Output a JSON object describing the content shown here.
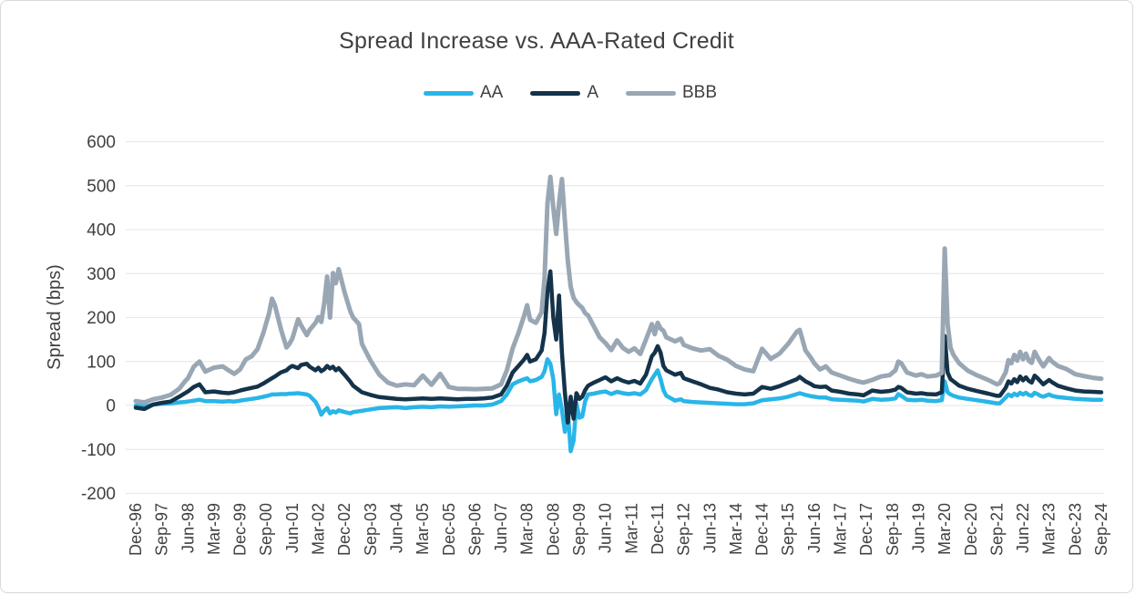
{
  "window": {
    "background": "#FFFFFF",
    "border_color": "#D8D8D8"
  },
  "chart": {
    "title": "Spread Increase vs. AAA-Rated Credit",
    "text_color": "#404040",
    "gridline_color": "#E9E9E9",
    "y_axis_label": "Spread (bps)"
  },
  "chart_data": {
    "type": "line",
    "title": "Spread Increase vs. AAA-Rated Credit",
    "xlabel": "",
    "ylabel": "Spread (bps)",
    "ylim": [
      -200,
      600
    ],
    "ytick_step": 100,
    "y_tick_labels": [
      "600",
      "500",
      "400",
      "300",
      "200",
      "100",
      "0",
      "-100",
      "-200"
    ],
    "grid": "horizontal",
    "legend_position": "top",
    "x_unit": "months since Dec-1996 (monthly spread vs AAA, bps)",
    "x_tick_labels": [
      "Dec-96",
      "Sep-97",
      "Jun-98",
      "Mar-99",
      "Dec-99",
      "Sep-00",
      "Jun-01",
      "Mar-02",
      "Dec-02",
      "Sep-03",
      "Jun-04",
      "Mar-05",
      "Dec-05",
      "Sep-06",
      "Jun-07",
      "Mar-08",
      "Dec-08",
      "Sep-09",
      "Jun-10",
      "Mar-11",
      "Dec-11",
      "Sep-12",
      "Jun-13",
      "Mar-14",
      "Dec-14",
      "Sep-15",
      "Jun-16",
      "Mar-17",
      "Dec-17",
      "Sep-18",
      "Jun-19",
      "Mar-20",
      "Dec-20",
      "Sep-21",
      "Jun-22",
      "Mar-23",
      "Dec-23",
      "Sep-24"
    ],
    "x_tick_months": [
      0,
      9,
      18,
      27,
      36,
      45,
      54,
      63,
      72,
      81,
      90,
      99,
      108,
      117,
      126,
      135,
      144,
      153,
      162,
      171,
      180,
      189,
      198,
      207,
      216,
      225,
      234,
      243,
      252,
      261,
      270,
      279,
      288,
      297,
      306,
      315,
      324,
      333
    ],
    "series": [
      {
        "name": "AA",
        "color": "#29B5E8",
        "stroke_width": 4.5
      },
      {
        "name": "A",
        "color": "#14334A",
        "stroke_width": 4.5
      },
      {
        "name": "BBB",
        "color": "#99A7B4",
        "stroke_width": 5
      }
    ],
    "columns": [
      "month_index",
      "AA",
      "A",
      "BBB"
    ],
    "rows": [
      [
        0,
        0,
        -5,
        10
      ],
      [
        3,
        -3,
        -8,
        7
      ],
      [
        6,
        2,
        2,
        14
      ],
      [
        9,
        4,
        6,
        18
      ],
      [
        12,
        5,
        9,
        24
      ],
      [
        15,
        7,
        20,
        38
      ],
      [
        17,
        8,
        28,
        55
      ],
      [
        18,
        9,
        32,
        62
      ],
      [
        20,
        11,
        42,
        88
      ],
      [
        22,
        13,
        48,
        100
      ],
      [
        24,
        10,
        30,
        77
      ],
      [
        27,
        10,
        32,
        86
      ],
      [
        30,
        9,
        29,
        89
      ],
      [
        32,
        10,
        28,
        80
      ],
      [
        34,
        9,
        30,
        72
      ],
      [
        36,
        11,
        34,
        82
      ],
      [
        38,
        13,
        37,
        105
      ],
      [
        40,
        15,
        40,
        112
      ],
      [
        42,
        17,
        43,
        128
      ],
      [
        44,
        20,
        50,
        165
      ],
      [
        46,
        23,
        58,
        210
      ],
      [
        47,
        25,
        62,
        243
      ],
      [
        48,
        25,
        66,
        228
      ],
      [
        50,
        26,
        75,
        175
      ],
      [
        52,
        26,
        80,
        132
      ],
      [
        53,
        27,
        86,
        140
      ],
      [
        54,
        27,
        90,
        152
      ],
      [
        56,
        28,
        85,
        196
      ],
      [
        57,
        27,
        92,
        183
      ],
      [
        59,
        25,
        95,
        160
      ],
      [
        60,
        22,
        88,
        172
      ],
      [
        62,
        8,
        80,
        188
      ],
      [
        63,
        -4,
        86,
        201
      ],
      [
        64,
        -21,
        78,
        190
      ],
      [
        65,
        -12,
        82,
        232
      ],
      [
        66,
        -6,
        90,
        293
      ],
      [
        67,
        -18,
        84,
        200
      ],
      [
        68,
        -13,
        88,
        301
      ],
      [
        69,
        -16,
        80,
        278
      ],
      [
        70,
        -11,
        85,
        310
      ],
      [
        72,
        -15,
        70,
        258
      ],
      [
        74,
        -18,
        54,
        214
      ],
      [
        75,
        -15,
        45,
        200
      ],
      [
        77,
        -13,
        35,
        185
      ],
      [
        78,
        -12,
        30,
        140
      ],
      [
        81,
        -9,
        24,
        102
      ],
      [
        84,
        -6,
        19,
        70
      ],
      [
        87,
        -5,
        17,
        52
      ],
      [
        90,
        -4,
        15,
        45
      ],
      [
        93,
        -6,
        14,
        48
      ],
      [
        96,
        -4,
        15,
        46
      ],
      [
        99,
        -3,
        16,
        68
      ],
      [
        102,
        -4,
        15,
        47
      ],
      [
        105,
        -2,
        16,
        72
      ],
      [
        108,
        -3,
        15,
        42
      ],
      [
        111,
        -2,
        14,
        38
      ],
      [
        114,
        -1,
        15,
        38
      ],
      [
        117,
        0,
        15,
        37
      ],
      [
        120,
        0,
        16,
        38
      ],
      [
        123,
        2,
        18,
        39
      ],
      [
        126,
        10,
        25,
        48
      ],
      [
        128,
        25,
        45,
        80
      ],
      [
        130,
        48,
        75,
        130
      ],
      [
        132,
        55,
        90,
        165
      ],
      [
        134,
        60,
        105,
        205
      ],
      [
        135,
        62,
        115,
        228
      ],
      [
        136,
        55,
        100,
        195
      ],
      [
        138,
        58,
        105,
        188
      ],
      [
        140,
        65,
        125,
        212
      ],
      [
        141,
        78,
        165,
        290
      ],
      [
        142,
        105,
        260,
        460
      ],
      [
        143,
        95,
        305,
        520
      ],
      [
        144,
        60,
        200,
        450
      ],
      [
        145,
        -20,
        150,
        390
      ],
      [
        146,
        25,
        250,
        460
      ],
      [
        147,
        -10,
        120,
        515
      ],
      [
        148,
        -60,
        30,
        420
      ],
      [
        149,
        -10,
        -39,
        330
      ],
      [
        150,
        -104,
        20,
        270
      ],
      [
        151,
        -80,
        -30,
        245
      ],
      [
        152,
        5,
        28,
        235
      ],
      [
        153,
        -28,
        15,
        228
      ],
      [
        154,
        -25,
        20,
        222
      ],
      [
        155,
        10,
        35,
        210
      ],
      [
        156,
        25,
        45,
        205
      ],
      [
        158,
        27,
        52,
        180
      ],
      [
        160,
        30,
        58,
        155
      ],
      [
        162,
        32,
        64,
        142
      ],
      [
        164,
        26,
        55,
        126
      ],
      [
        166,
        31,
        62,
        148
      ],
      [
        168,
        28,
        56,
        131
      ],
      [
        170,
        26,
        52,
        122
      ],
      [
        172,
        28,
        56,
        130
      ],
      [
        174,
        25,
        50,
        117
      ],
      [
        176,
        35,
        70,
        150
      ],
      [
        178,
        60,
        112,
        185
      ],
      [
        179,
        70,
        120,
        162
      ],
      [
        180,
        80,
        135,
        188
      ],
      [
        181,
        60,
        120,
        175
      ],
      [
        182,
        35,
        90,
        170
      ],
      [
        183,
        22,
        80,
        155
      ],
      [
        186,
        11,
        70,
        146
      ],
      [
        188,
        14,
        74,
        152
      ],
      [
        189,
        10,
        62,
        138
      ],
      [
        192,
        8,
        55,
        130
      ],
      [
        195,
        7,
        48,
        125
      ],
      [
        198,
        6,
        40,
        128
      ],
      [
        201,
        5,
        36,
        113
      ],
      [
        204,
        4,
        30,
        104
      ],
      [
        207,
        3,
        27,
        90
      ],
      [
        210,
        3,
        25,
        82
      ],
      [
        213,
        5,
        27,
        78
      ],
      [
        216,
        12,
        42,
        129
      ],
      [
        219,
        14,
        38,
        106
      ],
      [
        222,
        16,
        44,
        118
      ],
      [
        225,
        20,
        52,
        140
      ],
      [
        228,
        26,
        60,
        168
      ],
      [
        229,
        28,
        65,
        172
      ],
      [
        231,
        24,
        55,
        125
      ],
      [
        233,
        21,
        48,
        107
      ],
      [
        234,
        20,
        44,
        96
      ],
      [
        236,
        18,
        42,
        82
      ],
      [
        238,
        18,
        43,
        89
      ],
      [
        240,
        14,
        34,
        75
      ],
      [
        243,
        13,
        31,
        68
      ],
      [
        246,
        12,
        27,
        61
      ],
      [
        249,
        11,
        25,
        55
      ],
      [
        251,
        9,
        23,
        52
      ],
      [
        254,
        15,
        34,
        58
      ],
      [
        257,
        13,
        31,
        66
      ],
      [
        260,
        14,
        33,
        69
      ],
      [
        262,
        16,
        36,
        80
      ],
      [
        263,
        26,
        42,
        100
      ],
      [
        264,
        22,
        40,
        96
      ],
      [
        266,
        13,
        30,
        75
      ],
      [
        269,
        12,
        27,
        68
      ],
      [
        271,
        13,
        28,
        71
      ],
      [
        273,
        11,
        26,
        66
      ],
      [
        276,
        10,
        25,
        68
      ],
      [
        278,
        12,
        30,
        74
      ],
      [
        279,
        55,
        158,
        357
      ],
      [
        280,
        30,
        75,
        185
      ],
      [
        281,
        25,
        60,
        131
      ],
      [
        282,
        22,
        55,
        115
      ],
      [
        284,
        18,
        45,
        96
      ],
      [
        287,
        15,
        38,
        79
      ],
      [
        290,
        12,
        33,
        69
      ],
      [
        294,
        8,
        27,
        58
      ],
      [
        297,
        5,
        22,
        48
      ],
      [
        298,
        5,
        22,
        51
      ],
      [
        300,
        18,
        40,
        75
      ],
      [
        301,
        25,
        55,
        103
      ],
      [
        302,
        21,
        50,
        96
      ],
      [
        303,
        27,
        60,
        115
      ],
      [
        304,
        23,
        53,
        102
      ],
      [
        305,
        29,
        66,
        122
      ],
      [
        306,
        25,
        57,
        105
      ],
      [
        307,
        29,
        64,
        118
      ],
      [
        308,
        24,
        56,
        102
      ],
      [
        309,
        22,
        52,
        97
      ],
      [
        310,
        29,
        68,
        122
      ],
      [
        311,
        26,
        62,
        110
      ],
      [
        312,
        22,
        55,
        99
      ],
      [
        313,
        20,
        48,
        89
      ],
      [
        315,
        25,
        58,
        108
      ],
      [
        316,
        22,
        53,
        100
      ],
      [
        318,
        19,
        45,
        90
      ],
      [
        321,
        17,
        39,
        83
      ],
      [
        324,
        15,
        34,
        71
      ],
      [
        327,
        14,
        32,
        67
      ],
      [
        330,
        13,
        31,
        63
      ],
      [
        333,
        13,
        30,
        61
      ]
    ]
  }
}
